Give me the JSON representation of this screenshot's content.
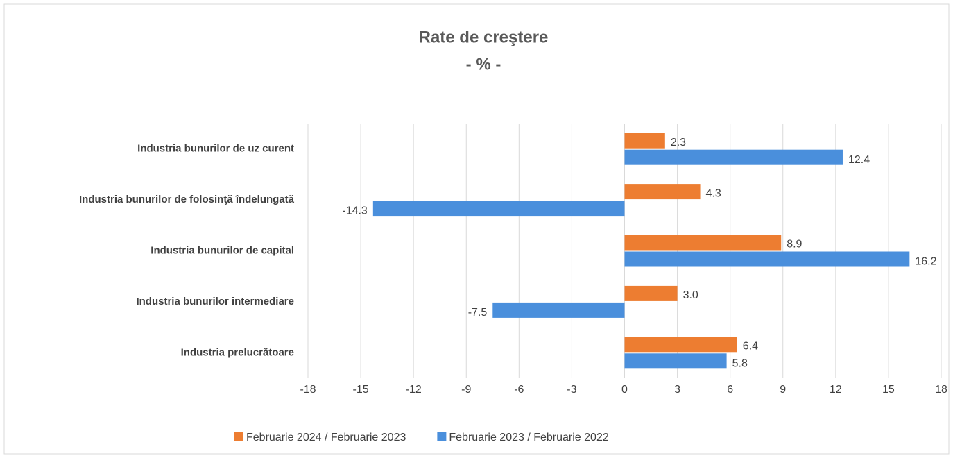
{
  "chart_data": {
    "type": "hbar",
    "title": "Rate de creştere",
    "subtitle": "- % -",
    "categories": [
      "Industria bunurilor de uz curent",
      "Industria bunurilor de folosinţă îndelungată",
      "Industria bunurilor de capital",
      "Industria bunurilor intermediare",
      "Industria prelucrătoare"
    ],
    "series": [
      {
        "name": "Februarie 2024 / Februarie 2023",
        "color": "#ed7d31",
        "values": [
          2.3,
          4.3,
          8.9,
          3.0,
          6.4
        ],
        "value_labels": [
          "2.3",
          "4.3",
          "8.9",
          "3.0",
          "6.4"
        ]
      },
      {
        "name": "Februarie 2023 / Februarie 2022",
        "color": "#4a8fdc",
        "values": [
          12.4,
          -14.3,
          16.2,
          -7.5,
          5.8
        ],
        "value_labels": [
          "12.4",
          "-14.3",
          "16.2",
          "-7.5",
          "5.8"
        ]
      }
    ],
    "xlim": [
      -18,
      18
    ],
    "xticks": [
      -18,
      -15,
      -12,
      -9,
      -6,
      -3,
      0,
      3,
      6,
      9,
      12,
      15,
      18
    ],
    "grid": true,
    "legend": "bottom"
  }
}
